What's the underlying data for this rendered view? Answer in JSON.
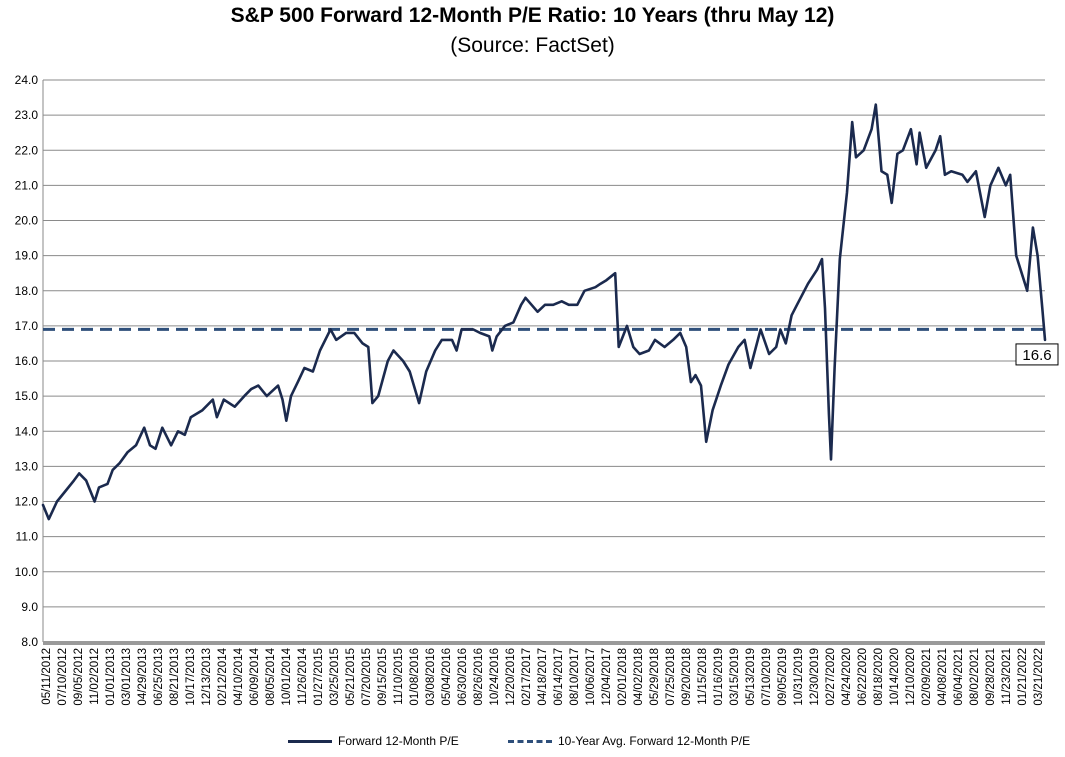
{
  "chart_data": {
    "type": "line",
    "title": "S&P 500 Forward 12-Month P/E Ratio: 10 Years (thru May 12)",
    "subtitle": "(Source: FactSet)",
    "ylim": [
      8.0,
      24.0
    ],
    "yticks": [
      "8.0",
      "9.0",
      "10.0",
      "11.0",
      "12.0",
      "13.0",
      "14.0",
      "15.0",
      "16.0",
      "17.0",
      "18.0",
      "19.0",
      "20.0",
      "21.0",
      "22.0",
      "23.0",
      "24.0"
    ],
    "x_range": [
      "2012-05-11",
      "2022-05-12"
    ],
    "xticks": [
      "05/11/2012",
      "07/10/2012",
      "09/05/2012",
      "11/02/2012",
      "01/01/2013",
      "03/01/2013",
      "04/29/2013",
      "06/25/2013",
      "08/21/2013",
      "10/17/2013",
      "12/13/2013",
      "02/12/2014",
      "04/10/2014",
      "06/09/2014",
      "08/05/2014",
      "10/01/2014",
      "11/26/2014",
      "01/27/2015",
      "03/25/2015",
      "05/21/2015",
      "07/20/2015",
      "09/15/2015",
      "11/10/2015",
      "01/08/2016",
      "03/08/2016",
      "05/04/2016",
      "06/30/2016",
      "08/26/2016",
      "10/24/2016",
      "12/20/2016",
      "02/17/2017",
      "04/18/2017",
      "06/14/2017",
      "08/10/2017",
      "10/06/2017",
      "12/04/2017",
      "02/01/2018",
      "04/02/2018",
      "05/29/2018",
      "07/25/2018",
      "09/20/2018",
      "11/15/2018",
      "01/16/2019",
      "03/15/2019",
      "05/13/2019",
      "07/10/2019",
      "09/05/2019",
      "10/31/2019",
      "12/30/2019",
      "02/27/2020",
      "04/24/2020",
      "06/22/2020",
      "08/18/2020",
      "10/14/2020",
      "12/10/2020",
      "02/09/2021",
      "04/08/2021",
      "06/04/2021",
      "08/02/2021",
      "09/28/2021",
      "11/23/2021",
      "01/21/2022",
      "03/21/2022"
    ],
    "grid": true,
    "legend_position": "bottom-center",
    "average_value": 16.9,
    "end_label": "16.6",
    "series": [
      {
        "name": "Forward 12-Month P/E",
        "color": "#1b2a4e",
        "style": "solid",
        "points": [
          [
            "2012-05-11",
            11.9
          ],
          [
            "2012-06-01",
            11.5
          ],
          [
            "2012-07-01",
            12.0
          ],
          [
            "2012-08-01",
            12.3
          ],
          [
            "2012-09-01",
            12.6
          ],
          [
            "2012-09-20",
            12.8
          ],
          [
            "2012-10-15",
            12.6
          ],
          [
            "2012-11-15",
            12.0
          ],
          [
            "2012-12-01",
            12.4
          ],
          [
            "2013-01-01",
            12.5
          ],
          [
            "2013-01-20",
            12.9
          ],
          [
            "2013-02-15",
            13.1
          ],
          [
            "2013-03-15",
            13.4
          ],
          [
            "2013-04-15",
            13.6
          ],
          [
            "2013-05-15",
            14.1
          ],
          [
            "2013-06-05",
            13.6
          ],
          [
            "2013-06-25",
            13.5
          ],
          [
            "2013-07-20",
            14.1
          ],
          [
            "2013-08-21",
            13.6
          ],
          [
            "2013-09-15",
            14.0
          ],
          [
            "2013-10-10",
            13.9
          ],
          [
            "2013-11-01",
            14.4
          ],
          [
            "2013-12-13",
            14.6
          ],
          [
            "2014-01-20",
            14.9
          ],
          [
            "2014-02-04",
            14.4
          ],
          [
            "2014-03-01",
            14.9
          ],
          [
            "2014-04-10",
            14.7
          ],
          [
            "2014-05-15",
            15.0
          ],
          [
            "2014-06-09",
            15.2
          ],
          [
            "2014-07-05",
            15.3
          ],
          [
            "2014-08-05",
            15.0
          ],
          [
            "2014-09-15",
            15.3
          ],
          [
            "2014-10-01",
            14.9
          ],
          [
            "2014-10-15",
            14.3
          ],
          [
            "2014-11-01",
            15.0
          ],
          [
            "2014-11-26",
            15.4
          ],
          [
            "2014-12-20",
            15.8
          ],
          [
            "2015-01-20",
            15.7
          ],
          [
            "2015-02-15",
            16.3
          ],
          [
            "2015-03-25",
            16.9
          ],
          [
            "2015-04-15",
            16.6
          ],
          [
            "2015-05-21",
            16.8
          ],
          [
            "2015-06-20",
            16.8
          ],
          [
            "2015-07-20",
            16.5
          ],
          [
            "2015-08-10",
            16.4
          ],
          [
            "2015-08-25",
            14.8
          ],
          [
            "2015-09-15",
            15.0
          ],
          [
            "2015-10-20",
            16.0
          ],
          [
            "2015-11-10",
            16.3
          ],
          [
            "2015-12-15",
            16.0
          ],
          [
            "2016-01-08",
            15.7
          ],
          [
            "2016-02-11",
            14.8
          ],
          [
            "2016-03-08",
            15.7
          ],
          [
            "2016-04-10",
            16.3
          ],
          [
            "2016-05-04",
            16.6
          ],
          [
            "2016-06-10",
            16.6
          ],
          [
            "2016-06-27",
            16.3
          ],
          [
            "2016-07-15",
            16.9
          ],
          [
            "2016-08-26",
            16.9
          ],
          [
            "2016-09-20",
            16.8
          ],
          [
            "2016-10-24",
            16.7
          ],
          [
            "2016-11-04",
            16.3
          ],
          [
            "2016-11-20",
            16.7
          ],
          [
            "2016-12-20",
            17.0
          ],
          [
            "2017-01-20",
            17.1
          ],
          [
            "2017-02-17",
            17.6
          ],
          [
            "2017-03-05",
            17.8
          ],
          [
            "2017-04-18",
            17.4
          ],
          [
            "2017-05-15",
            17.6
          ],
          [
            "2017-06-14",
            17.6
          ],
          [
            "2017-07-15",
            17.7
          ],
          [
            "2017-08-10",
            17.6
          ],
          [
            "2017-09-10",
            17.6
          ],
          [
            "2017-10-06",
            18.0
          ],
          [
            "2017-11-15",
            18.1
          ],
          [
            "2017-12-04",
            18.2
          ],
          [
            "2017-12-25",
            18.3
          ],
          [
            "2018-01-10",
            18.4
          ],
          [
            "2018-01-26",
            18.5
          ],
          [
            "2018-02-08",
            16.4
          ],
          [
            "2018-03-10",
            17.0
          ],
          [
            "2018-04-02",
            16.4
          ],
          [
            "2018-04-25",
            16.2
          ],
          [
            "2018-05-29",
            16.3
          ],
          [
            "2018-06-20",
            16.6
          ],
          [
            "2018-07-25",
            16.4
          ],
          [
            "2018-08-25",
            16.6
          ],
          [
            "2018-09-20",
            16.8
          ],
          [
            "2018-10-12",
            16.4
          ],
          [
            "2018-10-29",
            15.4
          ],
          [
            "2018-11-15",
            15.6
          ],
          [
            "2018-12-05",
            15.3
          ],
          [
            "2018-12-24",
            13.7
          ],
          [
            "2019-01-16",
            14.6
          ],
          [
            "2019-02-15",
            15.3
          ],
          [
            "2019-03-15",
            15.9
          ],
          [
            "2019-04-20",
            16.4
          ],
          [
            "2019-05-13",
            16.6
          ],
          [
            "2019-06-03",
            15.8
          ],
          [
            "2019-07-10",
            16.9
          ],
          [
            "2019-08-10",
            16.2
          ],
          [
            "2019-09-05",
            16.4
          ],
          [
            "2019-09-20",
            16.9
          ],
          [
            "2019-10-10",
            16.5
          ],
          [
            "2019-10-31",
            17.3
          ],
          [
            "2019-11-20",
            17.6
          ],
          [
            "2019-12-30",
            18.2
          ],
          [
            "2020-02-01",
            18.6
          ],
          [
            "2020-02-19",
            18.9
          ],
          [
            "2020-03-01",
            17.5
          ],
          [
            "2020-03-15",
            14.5
          ],
          [
            "2020-03-23",
            13.2
          ],
          [
            "2020-04-05",
            15.8
          ],
          [
            "2020-04-24",
            18.9
          ],
          [
            "2020-05-20",
            20.8
          ],
          [
            "2020-06-08",
            22.8
          ],
          [
            "2020-06-22",
            21.8
          ],
          [
            "2020-07-20",
            22.0
          ],
          [
            "2020-08-18",
            22.6
          ],
          [
            "2020-09-02",
            23.3
          ],
          [
            "2020-09-23",
            21.4
          ],
          [
            "2020-10-14",
            21.3
          ],
          [
            "2020-10-30",
            20.5
          ],
          [
            "2020-11-20",
            21.9
          ],
          [
            "2020-12-10",
            22.0
          ],
          [
            "2021-01-08",
            22.6
          ],
          [
            "2021-01-29",
            21.6
          ],
          [
            "2021-02-09",
            22.5
          ],
          [
            "2021-03-05",
            21.5
          ],
          [
            "2021-04-08",
            22.0
          ],
          [
            "2021-04-25",
            22.4
          ],
          [
            "2021-05-12",
            21.3
          ],
          [
            "2021-06-04",
            21.4
          ],
          [
            "2021-07-15",
            21.3
          ],
          [
            "2021-08-02",
            21.1
          ],
          [
            "2021-09-02",
            21.4
          ],
          [
            "2021-10-04",
            20.1
          ],
          [
            "2021-10-25",
            21.0
          ],
          [
            "2021-11-23",
            21.5
          ],
          [
            "2021-12-20",
            21.0
          ],
          [
            "2022-01-05",
            21.3
          ],
          [
            "2022-01-27",
            19.0
          ],
          [
            "2022-02-20",
            18.4
          ],
          [
            "2022-03-08",
            18.0
          ],
          [
            "2022-03-29",
            19.8
          ],
          [
            "2022-04-15",
            19.0
          ],
          [
            "2022-05-02",
            17.5
          ],
          [
            "2022-05-12",
            16.6
          ]
        ]
      },
      {
        "name": "10-Year Avg. Forward 12-Month P/E",
        "color": "#2e4f7a",
        "style": "dashed"
      }
    ]
  }
}
